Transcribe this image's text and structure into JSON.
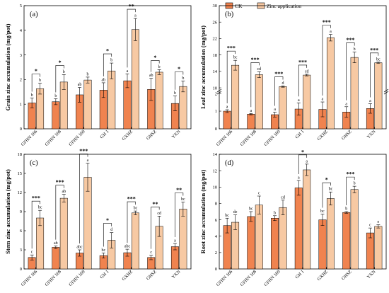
{
  "legend": {
    "ck_label": "CK",
    "zn_label": "Zinc application"
  },
  "colors": {
    "ck": "#f0834f",
    "zn": "#f7c9a3",
    "edge": "#000000",
    "error": "#000000"
  },
  "categories": [
    "GFHN 166",
    "GFHN 168",
    "GFHN 169",
    "GH 1",
    "GXHZ",
    "GHSZ",
    "YXN"
  ],
  "chart_data": [
    {
      "type": "bar",
      "panel": "(a)",
      "ylabel": "Grain zinc accumulation (mg/pot)",
      "ylim": [
        0,
        5
      ],
      "ticks": [
        0,
        1,
        2,
        3,
        4,
        5
      ],
      "series": [
        {
          "name": "CK",
          "values": [
            1.05,
            1.1,
            1.38,
            1.57,
            1.95,
            1.6,
            1.03
          ],
          "errors": [
            0.2,
            0.12,
            0.3,
            0.3,
            0.28,
            0.45,
            0.3
          ],
          "letters": [
            "b",
            "b",
            "ab",
            "ab",
            "a",
            "ab",
            "b"
          ]
        },
        {
          "name": "Zinc application",
          "values": [
            1.63,
            1.9,
            1.98,
            2.35,
            4.03,
            2.3,
            1.72
          ],
          "errors": [
            0.22,
            0.3,
            0.12,
            0.32,
            0.45,
            0.1,
            0.22
          ],
          "letters": [
            "b",
            "b",
            "b",
            "b",
            "a",
            "b",
            "b"
          ]
        }
      ],
      "significance": [
        "*",
        "*",
        "",
        "*",
        "**",
        "*",
        "*"
      ]
    },
    {
      "type": "bar",
      "panel": "(b)",
      "ylabel": "Leaf zinc accumulation (mg/pot)",
      "axis_break": true,
      "ticks": [
        0,
        1,
        2,
        10,
        14,
        18,
        22,
        26,
        30
      ],
      "series": [
        {
          "name": "CK",
          "values": [
            1.0,
            0.83,
            0.8,
            1.12,
            1.1,
            0.95,
            1.15
          ],
          "errors": [
            0.08,
            0.04,
            0.14,
            0.35,
            0.42,
            0.3,
            0.27
          ],
          "letters": [
            "a",
            "a",
            "a",
            "a",
            "a",
            "a",
            "a"
          ]
        },
        {
          "name": "Zinc application",
          "values": [
            15.5,
            13.2,
            10.3,
            13.1,
            22.2,
            17.4,
            16.1
          ],
          "errors": [
            1.2,
            0.7,
            0.15,
            0.2,
            0.8,
            1.3,
            0.15
          ],
          "letters": [
            "bc",
            "cd",
            "d",
            "cd",
            "a",
            "b",
            "bc"
          ]
        }
      ],
      "significance": [
        "***",
        "***",
        "***",
        "***",
        "***",
        "***",
        "***"
      ]
    },
    {
      "type": "bar",
      "panel": "(c)",
      "ylabel": "Stem zinc accumulation (mg/pot)",
      "ylim": [
        0,
        18
      ],
      "ticks": [
        0,
        3,
        6,
        9,
        12,
        15,
        18
      ],
      "series": [
        {
          "name": "CK",
          "values": [
            1.8,
            3.4,
            2.5,
            2.1,
            2.55,
            1.8,
            3.5
          ],
          "errors": [
            0.4,
            0.2,
            0.5,
            0.4,
            0.55,
            0.35,
            0.5
          ],
          "letters": [
            "c",
            "ab",
            "abc",
            "bc",
            "abc",
            "c",
            "a"
          ]
        },
        {
          "name": "Zinc application",
          "values": [
            8.0,
            11.1,
            14.4,
            4.5,
            8.8,
            6.7,
            9.4
          ],
          "errors": [
            1.2,
            0.6,
            2.2,
            1.2,
            0.3,
            1.6,
            1.1
          ],
          "letters": [
            "bc",
            "ab",
            "a",
            "d",
            "bc",
            "cd",
            "bc"
          ]
        }
      ],
      "significance": [
        "***",
        "***",
        "***",
        "*",
        "***",
        "**",
        "**"
      ]
    },
    {
      "type": "bar",
      "panel": "(d)",
      "ylabel": "Root zinc accumulation (mg/pot)",
      "ylim": [
        0,
        14
      ],
      "ticks": [
        0,
        2,
        4,
        6,
        8,
        10,
        12,
        14
      ],
      "series": [
        {
          "name": "CK",
          "values": [
            5.3,
            6.4,
            6.2,
            9.9,
            6.0,
            6.9,
            4.4
          ],
          "errors": [
            0.9,
            0.6,
            0.3,
            0.9,
            0.7,
            0.1,
            0.6
          ],
          "letters": [
            "bc",
            "bc",
            "b",
            "a",
            "bc",
            "b",
            "c"
          ]
        },
        {
          "name": "Zinc application",
          "values": [
            5.7,
            7.8,
            7.5,
            12.1,
            8.6,
            9.7,
            5.2
          ],
          "errors": [
            0.9,
            1.1,
            0.9,
            0.7,
            0.8,
            0.4,
            0.2
          ],
          "letters": [
            "de",
            "c",
            "cd",
            "a",
            "bc",
            "b",
            "e"
          ]
        }
      ],
      "significance": [
        "",
        "",
        "",
        "*",
        "*",
        "***",
        ""
      ]
    }
  ]
}
